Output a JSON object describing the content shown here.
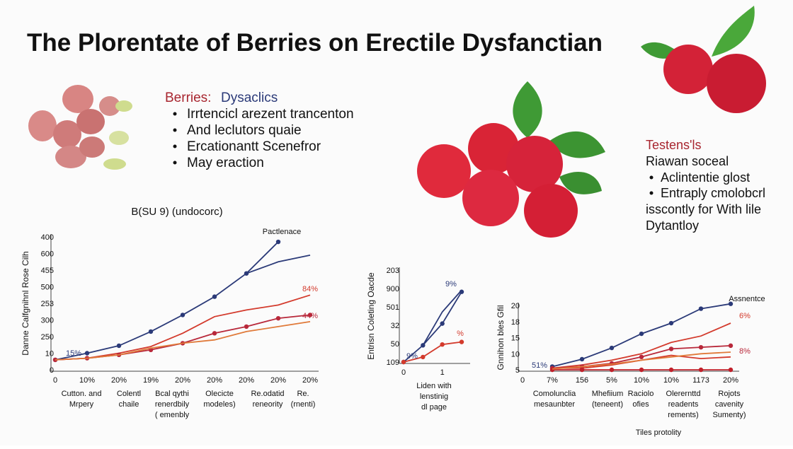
{
  "title": "The Plorentate of Berries on Erectile Dysfanctian",
  "berries_box": {
    "heading_a": "Berries:",
    "heading_b": "Dysaclics",
    "bullets": [
      "Irrtencicl arezent trancenton",
      "And leclutors quaie",
      "Ercationantt Scenefror",
      "May eraction"
    ]
  },
  "testens_box": {
    "heading": "Testens'ls",
    "subheading": "Riawan soceal",
    "bullets": [
      "Aclintentie glost",
      "Entraply cmolobcrl"
    ],
    "lines": [
      "isscontly for With lile",
      "Dytantloy"
    ]
  },
  "chart_data": [
    {
      "type": "line",
      "title": "B(SU 9) (undocorc)",
      "y_label": "Danne Calfgnihnl Rose Cilh",
      "y_labels": [
        "400",
        "600",
        "455",
        "500",
        "253",
        "300",
        "250",
        "10",
        "0"
      ],
      "ylim": [
        0,
        8
      ],
      "categories": [
        "0",
        "10%",
        "20%",
        "19%",
        "20%",
        "20%",
        "20%",
        "20%",
        "20%"
      ],
      "group_labels": [
        [
          "Cutton. and",
          "Mrpery"
        ],
        [
          "Colentl",
          "chaile"
        ],
        [
          "Bcal qythi",
          "renerdbily",
          "( emenbly"
        ],
        [
          "Olecicte",
          "modeles)"
        ],
        [
          "Re.odatid",
          "reneority"
        ],
        [
          "Re.",
          "(rnenti)"
        ]
      ],
      "annotations": [
        "Pactlenace",
        "84%",
        "44%",
        "15%"
      ],
      "series": [
        {
          "color": "#2b3a78",
          "markers": true,
          "values": [
            0.6,
            1.0,
            1.45,
            2.3,
            3.3,
            4.4,
            5.8,
            7.7,
            null
          ]
        },
        {
          "color": "#2b3a78",
          "markers": false,
          "values": [
            null,
            null,
            null,
            null,
            null,
            null,
            5.8,
            6.5,
            6.9
          ]
        },
        {
          "color": "#d33a2c",
          "markers": false,
          "values": [
            0.6,
            0.7,
            1.0,
            1.4,
            2.2,
            3.2,
            3.6,
            3.9,
            4.5
          ]
        },
        {
          "color": "#b8283a",
          "markers": true,
          "values": [
            0.6,
            0.7,
            0.9,
            1.2,
            1.6,
            2.2,
            2.6,
            3.1,
            3.3
          ]
        },
        {
          "color": "#e07a3a",
          "markers": false,
          "values": [
            0.6,
            0.7,
            0.9,
            1.3,
            1.6,
            1.8,
            2.3,
            2.6,
            2.9
          ]
        }
      ]
    },
    {
      "type": "line",
      "y_label": "Entrisn Coleting Oacde",
      "y_labels": [
        "203",
        "900",
        "501",
        "32",
        "50",
        "109"
      ],
      "ylim": [
        -0.5,
        5
      ],
      "categories": [
        "0",
        null,
        "1",
        null
      ],
      "group_labels": [
        [
          "Liden with",
          "lenstinig",
          "dl page"
        ]
      ],
      "annotations": [
        "9%",
        "9%",
        "%"
      ],
      "series": [
        {
          "color": "#2b3a78",
          "markers": true,
          "values": [
            -0.5,
            0.5,
            1.8,
            3.7
          ]
        },
        {
          "color": "#2b3a78",
          "markers": false,
          "values": [
            null,
            0.5,
            2.5,
            3.8
          ]
        },
        {
          "color": "#d33a2c",
          "markers": true,
          "values": [
            -0.5,
            -0.2,
            0.55,
            0.7
          ]
        }
      ]
    },
    {
      "type": "line",
      "y_label": "Gnnihon bles Gfil",
      "y_labels": [
        "20",
        "18",
        "15",
        "10",
        "5"
      ],
      "ylim": [
        0,
        4
      ],
      "categories": [
        "0",
        "7%",
        "156",
        "5%",
        "10%",
        "10%",
        "1173",
        "20%"
      ],
      "group_labels": [
        [
          "Comolunclia",
          "mesaunbter"
        ],
        [
          "Mhefiium",
          "(teneent)"
        ],
        [
          "Raciolo",
          "ofies"
        ],
        [
          "Olerernttd",
          "readents",
          "rements)"
        ],
        [
          "Rojots",
          "cavenity",
          "Sumenty)"
        ]
      ],
      "footer": "Tiles protolity",
      "annotations": [
        "Assnentce",
        "6%",
        "8%",
        "51%"
      ],
      "series": [
        {
          "color": "#2b3a78",
          "markers": true,
          "values": [
            null,
            0.2,
            0.66,
            1.36,
            2.24,
            2.9,
            3.8,
            4.1
          ]
        },
        {
          "color": "#d33a2c",
          "markers": false,
          "values": [
            null,
            0.1,
            0.3,
            0.6,
            1.0,
            1.7,
            2.1,
            2.9
          ]
        },
        {
          "color": "#b8283a",
          "markers": true,
          "values": [
            null,
            0.1,
            0.2,
            0.4,
            0.8,
            1.3,
            1.4,
            1.5
          ]
        },
        {
          "color": "#d33a2c",
          "markers": false,
          "values": [
            null,
            0.1,
            0.1,
            0.3,
            0.6,
            0.9,
            0.7,
            0.8
          ]
        },
        {
          "color": "#c0202a",
          "markers": true,
          "values": [
            null,
            0,
            0,
            0,
            0,
            0,
            0,
            0
          ]
        },
        {
          "color": "#e07a3a",
          "markers": false,
          "values": [
            null,
            0.05,
            0.2,
            0.35,
            0.6,
            0.8,
            1.0,
            1.1
          ]
        }
      ]
    }
  ]
}
